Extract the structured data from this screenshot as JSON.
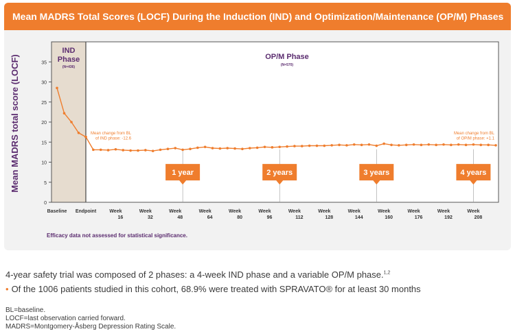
{
  "header": {
    "title": "Mean MADRS Total Scores (LOCF) During the Induction (IND) and Optimization/Maintenance (OP/M) Phases"
  },
  "chart_data": {
    "type": "line",
    "ylabel": "Mean MADRS total score (LOCF)",
    "ylim": [
      0,
      40
    ],
    "yticks": [
      0,
      5,
      10,
      15,
      20,
      25,
      30,
      35
    ],
    "xlabels": [
      {
        "label": "Baseline",
        "week": "",
        "x": -4
      },
      {
        "label": "Endpoint",
        "week": "",
        "x": 0
      },
      {
        "label": "Week",
        "week": "16",
        "x": 16
      },
      {
        "label": "Week",
        "week": "32",
        "x": 32
      },
      {
        "label": "Week",
        "week": "48",
        "x": 48
      },
      {
        "label": "Week",
        "week": "64",
        "x": 64
      },
      {
        "label": "Week",
        "week": "80",
        "x": 80
      },
      {
        "label": "Week",
        "week": "96",
        "x": 96
      },
      {
        "label": "Week",
        "week": "112",
        "x": 112
      },
      {
        "label": "Week",
        "week": "128",
        "x": 128
      },
      {
        "label": "Week",
        "week": "144",
        "x": 144
      },
      {
        "label": "Week",
        "week": "160",
        "x": 160
      },
      {
        "label": "Week",
        "week": "176",
        "x": 176
      },
      {
        "label": "Week",
        "week": "192",
        "x": 192
      },
      {
        "label": "Week",
        "week": "208",
        "x": 208
      }
    ],
    "ind_series": [
      {
        "x": -4,
        "y": 28.5
      },
      {
        "x": -3,
        "y": 22.2
      },
      {
        "x": -2,
        "y": 20.0
      },
      {
        "x": -1,
        "y": 17.3
      },
      {
        "x": 0,
        "y": 16.3
      }
    ],
    "opm_series": [
      {
        "x": 0,
        "y": 16.3
      },
      {
        "x": 4,
        "y": 13.1
      },
      {
        "x": 8,
        "y": 13.1
      },
      {
        "x": 12,
        "y": 13.0
      },
      {
        "x": 16,
        "y": 13.2
      },
      {
        "x": 20,
        "y": 13.0
      },
      {
        "x": 24,
        "y": 12.9
      },
      {
        "x": 28,
        "y": 12.9
      },
      {
        "x": 32,
        "y": 13.0
      },
      {
        "x": 36,
        "y": 12.8
      },
      {
        "x": 40,
        "y": 13.1
      },
      {
        "x": 44,
        "y": 13.3
      },
      {
        "x": 48,
        "y": 13.5
      },
      {
        "x": 52,
        "y": 13.1
      },
      {
        "x": 56,
        "y": 13.3
      },
      {
        "x": 60,
        "y": 13.6
      },
      {
        "x": 64,
        "y": 13.8
      },
      {
        "x": 68,
        "y": 13.5
      },
      {
        "x": 72,
        "y": 13.4
      },
      {
        "x": 76,
        "y": 13.5
      },
      {
        "x": 80,
        "y": 13.4
      },
      {
        "x": 84,
        "y": 13.3
      },
      {
        "x": 88,
        "y": 13.5
      },
      {
        "x": 92,
        "y": 13.6
      },
      {
        "x": 96,
        "y": 13.8
      },
      {
        "x": 100,
        "y": 13.7
      },
      {
        "x": 104,
        "y": 13.8
      },
      {
        "x": 108,
        "y": 13.9
      },
      {
        "x": 112,
        "y": 14.0
      },
      {
        "x": 116,
        "y": 14.0
      },
      {
        "x": 120,
        "y": 14.1
      },
      {
        "x": 124,
        "y": 14.1
      },
      {
        "x": 128,
        "y": 14.1
      },
      {
        "x": 132,
        "y": 14.2
      },
      {
        "x": 136,
        "y": 14.3
      },
      {
        "x": 140,
        "y": 14.2
      },
      {
        "x": 144,
        "y": 14.4
      },
      {
        "x": 148,
        "y": 14.3
      },
      {
        "x": 152,
        "y": 14.4
      },
      {
        "x": 156,
        "y": 14.1
      },
      {
        "x": 160,
        "y": 14.6
      },
      {
        "x": 164,
        "y": 14.3
      },
      {
        "x": 168,
        "y": 14.2
      },
      {
        "x": 172,
        "y": 14.3
      },
      {
        "x": 176,
        "y": 14.4
      },
      {
        "x": 180,
        "y": 14.3
      },
      {
        "x": 184,
        "y": 14.4
      },
      {
        "x": 188,
        "y": 14.3
      },
      {
        "x": 192,
        "y": 14.4
      },
      {
        "x": 196,
        "y": 14.3
      },
      {
        "x": 200,
        "y": 14.4
      },
      {
        "x": 204,
        "y": 14.3
      },
      {
        "x": 208,
        "y": 14.4
      },
      {
        "x": 212,
        "y": 14.3
      },
      {
        "x": 216,
        "y": 14.3
      },
      {
        "x": 220,
        "y": 14.2
      }
    ],
    "phases": {
      "ind": {
        "title_line1": "IND",
        "title_line2": "Phase",
        "n": "(N=436)"
      },
      "opm": {
        "title": "OP/M Phase",
        "n": "(N=570)"
      }
    },
    "annotations": {
      "ind_change_line1": "Mean change from BL",
      "ind_change_line2": "of IND phase: -12.6",
      "opm_change_line1": "Mean change from BL",
      "opm_change_line2": "of OP/M phase: +1.1"
    },
    "milestones": [
      {
        "label": "1 year",
        "x": 52
      },
      {
        "label": "2 years",
        "x": 104
      },
      {
        "label": "3 years",
        "x": 156
      },
      {
        "label": "4 years",
        "x": 208
      }
    ],
    "colors": {
      "line": "#ef7d2d",
      "ind_fill": "#e6dccf",
      "purple": "#5b2c6f",
      "badge": "#ef7d2d"
    }
  },
  "chart_footnote": "Efficacy data not assessed for statistical significance.",
  "summary": {
    "line1": "4-year safety trial was composed of 2 phases: a 4-week IND phase and a variable OP/M phase.",
    "line1_sup": "1,2",
    "bullet": "Of the 1006 patients studied in this cohort, 68.9% were treated with SPRAVATO® for at least 30 months"
  },
  "abbreviations": {
    "bl": "BL=baseline.",
    "locf": "LOCF=last observation carried forward.",
    "madrs": "MADRS=Montgomery-Åsberg Depression Rating Scale."
  }
}
